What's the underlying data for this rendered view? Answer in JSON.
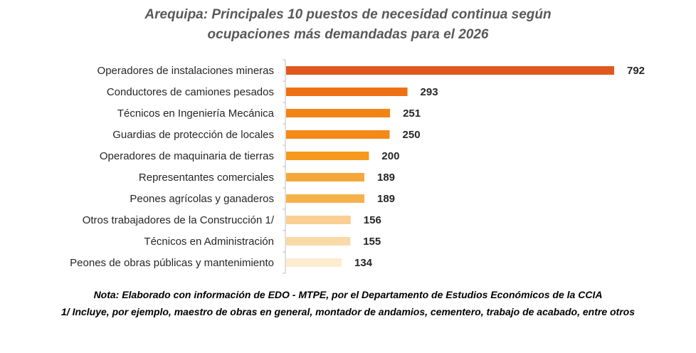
{
  "chart_data": {
    "type": "bar",
    "orientation": "horizontal",
    "title": "Arequipa: Principales 10 puestos de necesidad continua según ocupaciones más demandadas para el 2026",
    "title_line1": "Arequipa: Principales 10 puestos de necesidad continua según",
    "title_line2": "ocupaciones más demandadas para el 2026",
    "categories": [
      "Operadores de instalaciones mineras",
      "Conductores de camiones pesados",
      "Técnicos en Ingeniería Mecánica",
      "Guardias de protección de locales",
      "Operadores de maquinaria de tierras",
      "Representantes comerciales",
      "Peones agrícolas y ganaderos",
      "Otros trabajadores de la Construcción 1/",
      "Técnicos en Administración",
      "Peones de obras públicas y mantenimiento"
    ],
    "values": [
      792,
      293,
      251,
      250,
      200,
      189,
      189,
      156,
      155,
      134
    ],
    "colors": [
      "#e0581e",
      "#ef7012",
      "#f28416",
      "#f48918",
      "#f59a1c",
      "#f5a83a",
      "#f6b24a",
      "#f9cf92",
      "#fad9a8",
      "#fdeccf"
    ],
    "xlim": [
      0,
      792
    ],
    "xlabel": "",
    "ylabel": "",
    "data_labels": true,
    "grid": false
  },
  "notes": {
    "line1": "Nota: Elaborado con información de EDO - MTPE, por el Departamento de Estudios Económicos de la CCIA",
    "line2": "1/ Incluye, por ejemplo, maestro de obras en general, montador de andamios, cementero, trabajo de acabado, entre otros"
  }
}
